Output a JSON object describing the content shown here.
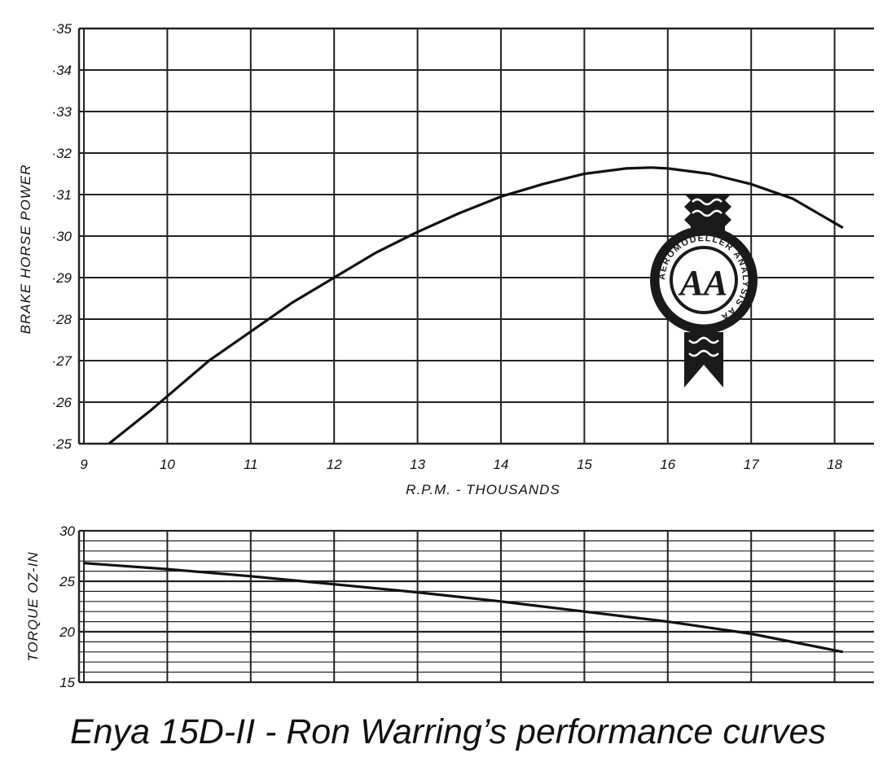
{
  "caption": "Enya 15D-II - Ron Warring’s performance curves",
  "badge_text": "AEROMODELLER ANALYSIS AA",
  "chart_data": [
    {
      "type": "line",
      "title": "",
      "xlabel": "R.P.M. - THOUSANDS",
      "ylabel": "BRAKE HORSE POWER",
      "x_ticks": [
        "9",
        "10",
        "11",
        "12",
        "13",
        "14",
        "15",
        "16",
        "17",
        "18"
      ],
      "y_ticks": [
        "·25",
        "·26",
        "·27",
        "·28",
        "·29",
        "·30",
        "·31",
        "·32",
        "·33",
        "·34",
        "·35"
      ],
      "xlim": [
        9,
        18.5
      ],
      "ylim": [
        0.25,
        0.35
      ],
      "grid": true,
      "series": [
        {
          "x": [
            9.3,
            9.8,
            10.5,
            11.0,
            11.5,
            12.0,
            12.5,
            13.0,
            13.5,
            14.0,
            14.5,
            15.0,
            15.5,
            15.8,
            16.0,
            16.5,
            17.0,
            17.5,
            18.1
          ],
          "values": [
            0.25,
            0.258,
            0.27,
            0.277,
            0.284,
            0.29,
            0.296,
            0.301,
            0.3055,
            0.3095,
            0.3125,
            0.315,
            0.3163,
            0.3165,
            0.3163,
            0.315,
            0.3125,
            0.309,
            0.302
          ]
        }
      ]
    },
    {
      "type": "line",
      "title": "",
      "xlabel": "",
      "ylabel": "TORQUE OZ-IN",
      "x_ticks": [],
      "y_ticks": [
        "30",
        "25",
        "20",
        "15"
      ],
      "xlim": [
        9,
        18.5
      ],
      "ylim": [
        15,
        30
      ],
      "grid": true,
      "series": [
        {
          "x": [
            9.0,
            10.0,
            11.0,
            12.0,
            13.0,
            14.0,
            15.0,
            16.0,
            17.0,
            18.1
          ],
          "values": [
            26.8,
            26.2,
            25.5,
            24.7,
            23.9,
            23.0,
            22.0,
            21.0,
            19.8,
            18.0
          ]
        }
      ]
    }
  ]
}
